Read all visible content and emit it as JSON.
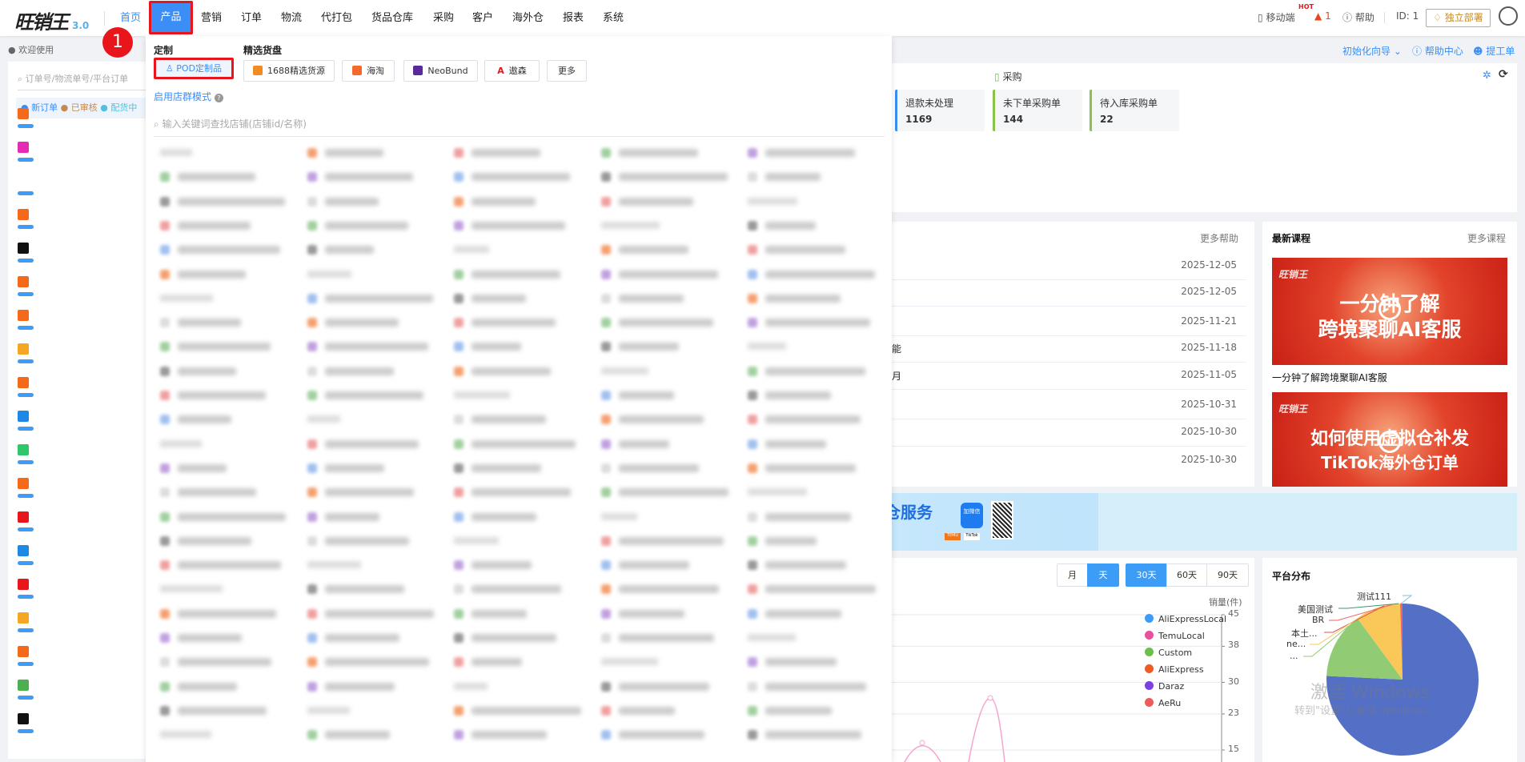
{
  "header": {
    "logo": "旺销王",
    "version": "3.0",
    "nav": [
      "首页",
      "产品",
      "营销",
      "订单",
      "物流",
      "代打包",
      "货品仓库",
      "采购",
      "客户",
      "海外仓",
      "报表",
      "系统"
    ],
    "active_nav": "产品",
    "mobile": "移动端",
    "hot": "HOT",
    "alerts": "1",
    "help": "帮助",
    "id": "ID: 1",
    "deploy": "独立部署"
  },
  "step_marker": "1",
  "subbar": {
    "welcome": "欢迎使用",
    "wizard": "初始化向导",
    "help_center": "帮助中心",
    "ticket": "提工单"
  },
  "sidebar": {
    "search_placeholder": "订单号/物流单号/平台订单",
    "filters": [
      "新订单",
      "已审核",
      "配货中"
    ]
  },
  "dropdown": {
    "custom_heading": "定制",
    "picks_heading": "精选货盘",
    "buttons": [
      "POD定制品",
      "1688精选货源",
      "海淘",
      "NeoBund",
      "遨森",
      "更多"
    ],
    "store_group_mode": "启用店群模式",
    "search_placeholder": "输入关键词查找店铺(店铺id/名称)"
  },
  "purchase": {
    "title": "采购",
    "stats": [
      {
        "label": "退款未处理",
        "value": "1169"
      },
      {
        "label": "未下单采购单",
        "value": "144"
      },
      {
        "label": "待入库采购单",
        "value": "22"
      }
    ]
  },
  "help_list": {
    "more": "更多帮助",
    "fragments": [
      "",
      "",
      "",
      "能",
      "月",
      "",
      "",
      ""
    ],
    "dates": [
      "2025-12-05",
      "2025-12-05",
      "2025-11-21",
      "2025-11-18",
      "2025-11-05",
      "2025-10-31",
      "2025-10-30",
      "2025-10-30"
    ]
  },
  "courses": {
    "title": "最新课程",
    "more": "更多课程",
    "items": [
      {
        "image_text": [
          "一分钟了解",
          "跨境聚聊AI客服"
        ],
        "caption": "一分钟了解跨境聚聊AI客服"
      },
      {
        "image_text": [
          "如何使用虚拟仓补发",
          "TikTok海外仓订单"
        ]
      }
    ]
  },
  "banner": {
    "title": "仓服务",
    "wechat": "加微信",
    "platforms": [
      "TEMU",
      "TikTok"
    ]
  },
  "sales_chart": {
    "period_buttons": [
      "月",
      "天"
    ],
    "active_period": "天",
    "range_buttons": [
      "30天",
      "60天",
      "90天"
    ],
    "active_range": "30天"
  },
  "pie_title": "平台分布",
  "chart_data": [
    {
      "type": "line",
      "ylabel": "销量(件)",
      "y_ticks": [
        45,
        38,
        30,
        23,
        15
      ],
      "series": [
        {
          "name": "AliExpressLocal",
          "color": "#3d9cf5"
        },
        {
          "name": "TemuLocal",
          "color": "#e94e9f"
        },
        {
          "name": "Custom",
          "color": "#6cc04a"
        },
        {
          "name": "AliExpress",
          "color": "#f05a23"
        },
        {
          "name": "Daraz",
          "color": "#7b3fe4"
        },
        {
          "name": "AeRu",
          "color": "#ef5a5a"
        }
      ]
    },
    {
      "type": "pie",
      "labels": [
        "测试111",
        "美国测试",
        "BR",
        "本土...",
        "ne...",
        "..."
      ],
      "slices": [
        {
          "label": "blue",
          "value": 75,
          "color": "#5470c6"
        },
        {
          "label": "green",
          "value": 14,
          "color": "#91cc75"
        },
        {
          "label": "yellow",
          "value": 9.5,
          "color": "#fac858"
        },
        {
          "label": "red",
          "value": 0.5,
          "color": "#ee6666"
        }
      ]
    }
  ],
  "watermark": [
    "激活 Windows",
    "转到\"设置\"以激活 Windows。"
  ]
}
